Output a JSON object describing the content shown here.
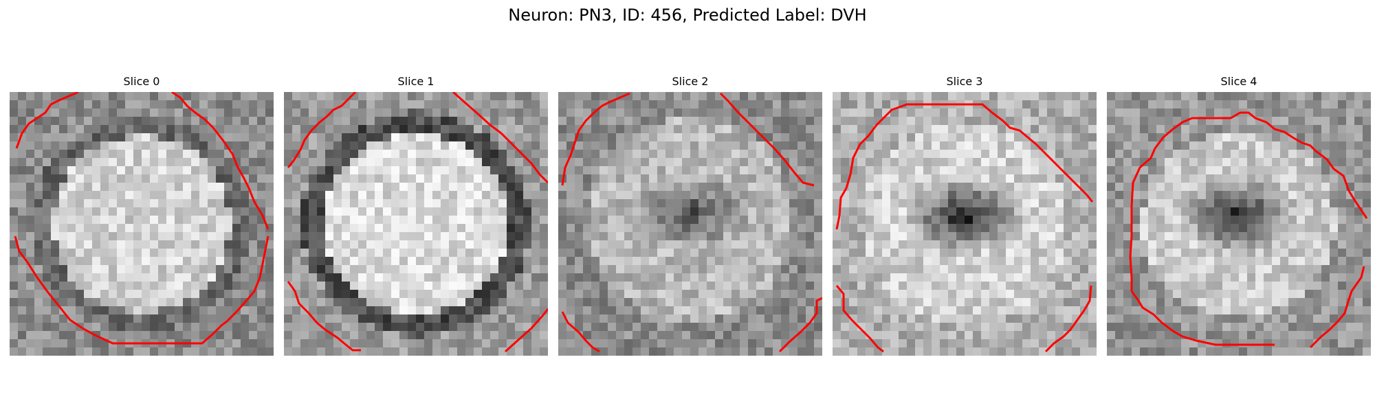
{
  "figure": {
    "title": "Neuron: PN3, ID: 456, Predicted Label: DVH"
  },
  "slices": [
    {
      "title": "Slice 0"
    },
    {
      "title": "Slice 1"
    },
    {
      "title": "Slice 2"
    },
    {
      "title": "Slice 3"
    },
    {
      "title": "Slice 4"
    }
  ],
  "colors": {
    "contour": "#ff0000"
  }
}
